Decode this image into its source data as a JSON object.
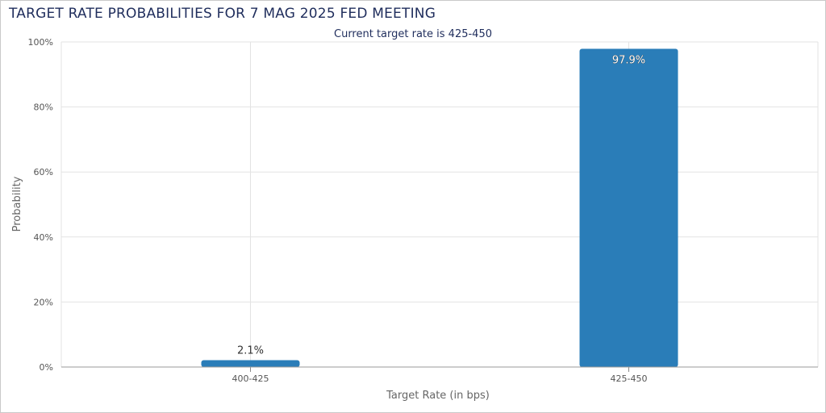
{
  "chart_data": {
    "type": "bar",
    "title": "TARGET RATE PROBABILITIES FOR 7 MAG 2025 FED MEETING",
    "subtitle": "Current target rate is 425-450",
    "xlabel": "Target Rate (in bps)",
    "ylabel": "Probability",
    "categories": [
      "400-425",
      "425-450"
    ],
    "values": [
      2.1,
      97.9
    ],
    "data_labels": [
      "2.1%",
      "97.9%"
    ],
    "ylim": [
      0,
      100
    ],
    "yticks": [
      "0%",
      "20%",
      "40%",
      "60%",
      "80%",
      "100%"
    ],
    "grid": true,
    "legend": "none",
    "colors": {
      "bar": "#2a7db8",
      "grid": "#e3e3e3",
      "title": "#1f2d5c"
    }
  }
}
